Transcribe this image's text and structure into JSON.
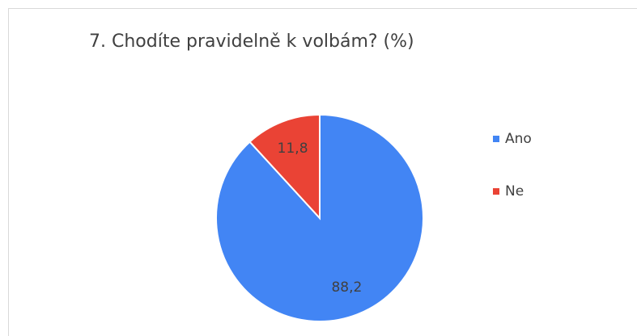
{
  "chart_data": {
    "type": "pie",
    "title": "7. Chodíte pravidelně k volbám? (%)",
    "categories": [
      "Ano",
      "Ne"
    ],
    "values": [
      88.2,
      11.8
    ],
    "value_labels": [
      "88,2",
      "11,8"
    ],
    "colors": [
      "#4285f4",
      "#ea4335"
    ],
    "legend": "right"
  }
}
